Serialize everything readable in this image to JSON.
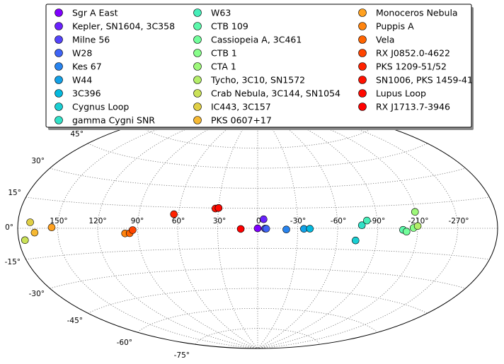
{
  "chart_data": {
    "type": "scatter",
    "projection": "aitoff",
    "grid": true,
    "legend_placement": "top",
    "legend_columns": 3,
    "colormap": "rainbow",
    "longitude_ticks": [
      "150°",
      "120°",
      "90°",
      "60°",
      "30°",
      "0°",
      "-30°",
      "-60°",
      "-90°",
      "-210°",
      "-270°"
    ],
    "latitude_ticks": [
      "45°",
      "30°",
      "15°",
      "0°",
      "-15°",
      "-30°",
      "-45°",
      "-60°",
      "-75°"
    ],
    "series": [
      {
        "name": "Sgr A East",
        "color": "#8000ff",
        "points": [
          {
            "l": 0.0,
            "b": -0.05
          }
        ]
      },
      {
        "name": "Kepler, SN1604, 3C358",
        "color": "#6a22fe",
        "points": [
          {
            "l": 4.5,
            "b": 6.8
          }
        ]
      },
      {
        "name": "Milne 56",
        "color": "#5444fb",
        "points": [
          {
            "l": 5.5,
            "b": -0.2
          }
        ]
      },
      {
        "name": "W28",
        "color": "#3e64f6",
        "points": [
          {
            "l": 6.4,
            "b": -0.3
          }
        ]
      },
      {
        "name": "Kes 67",
        "color": "#2884ef",
        "points": [
          {
            "l": 21.5,
            "b": -0.9
          }
        ]
      },
      {
        "name": "W44",
        "color": "#12a1e7",
        "points": [
          {
            "l": 34.7,
            "b": -0.4
          }
        ]
      },
      {
        "name": "3C396",
        "color": "#04b9de",
        "points": [
          {
            "l": 39.2,
            "b": -0.3
          }
        ]
      },
      {
        "name": "Cygnus Loop",
        "color": "#1acfd3",
        "points": [
          {
            "l": 74.0,
            "b": -8.5
          }
        ]
      },
      {
        "name": "gamma Cygni SNR",
        "color": "#30e1c7",
        "points": [
          {
            "l": 78.2,
            "b": 2.1
          }
        ]
      },
      {
        "name": "W63",
        "color": "#46eeb9",
        "points": [
          {
            "l": 82.2,
            "b": 5.3
          }
        ]
      },
      {
        "name": "CTB 109",
        "color": "#5cf8ab",
        "points": [
          {
            "l": 109.1,
            "b": -1.0
          }
        ]
      },
      {
        "name": "Cassiopeia A, 3C461",
        "color": "#72fe9b",
        "points": [
          {
            "l": 111.7,
            "b": -2.1
          }
        ]
      },
      {
        "name": "CTB 1",
        "color": "#88fe8b",
        "points": [
          {
            "l": 116.9,
            "b": 0.2
          }
        ]
      },
      {
        "name": "CTA 1",
        "color": "#9ef87a",
        "points": [
          {
            "l": 119.5,
            "b": 10.2
          }
        ]
      },
      {
        "name": "Tycho, 3C10, SN1572",
        "color": "#b4ee69",
        "points": [
          {
            "l": 120.1,
            "b": 1.4
          }
        ]
      },
      {
        "name": "Crab Nebula, 3C144, SN1054",
        "color": "#cae157",
        "points": [
          {
            "l": 184.6,
            "b": -5.8
          }
        ]
      },
      {
        "name": "IC443, 3C157",
        "color": "#e0cf45",
        "points": [
          {
            "l": 189.1,
            "b": 3.0
          }
        ]
      },
      {
        "name": "PKS 0607+17",
        "color": "#f6b933",
        "points": [
          {
            "l": 192.6,
            "b": -2.2
          }
        ]
      },
      {
        "name": "Monoceros Nebula",
        "color": "#ffa120",
        "points": [
          {
            "l": 205.5,
            "b": 0.5
          }
        ]
      },
      {
        "name": "Puppis A",
        "color": "#ff840e",
        "points": [
          {
            "l": 260.4,
            "b": -3.4
          }
        ]
      },
      {
        "name": "Vela",
        "color": "#ff6400",
        "points": [
          {
            "l": 263.9,
            "b": -3.3
          }
        ]
      },
      {
        "name": "RX J0852.0-4622",
        "color": "#ff4400",
        "points": [
          {
            "l": 266.2,
            "b": -1.2
          }
        ]
      },
      {
        "name": "PKS 1209-51/52",
        "color": "#ff2200",
        "points": [
          {
            "l": 296.5,
            "b": 10.0
          }
        ]
      },
      {
        "name": "SN1006, PKS 1459-41",
        "color": "#ff1100",
        "points": [
          {
            "l": 327.6,
            "b": 14.6
          },
          {
            "l": 330.0,
            "b": 15.0
          }
        ]
      },
      {
        "name": "Lupus Loop",
        "color": "#ff0800",
        "points": [
          {
            "l": 330.0,
            "b": 15.0
          }
        ]
      },
      {
        "name": "RX J1713.7-3946",
        "color": "#ff0000",
        "points": [
          {
            "l": 347.3,
            "b": -0.5
          }
        ]
      }
    ]
  }
}
